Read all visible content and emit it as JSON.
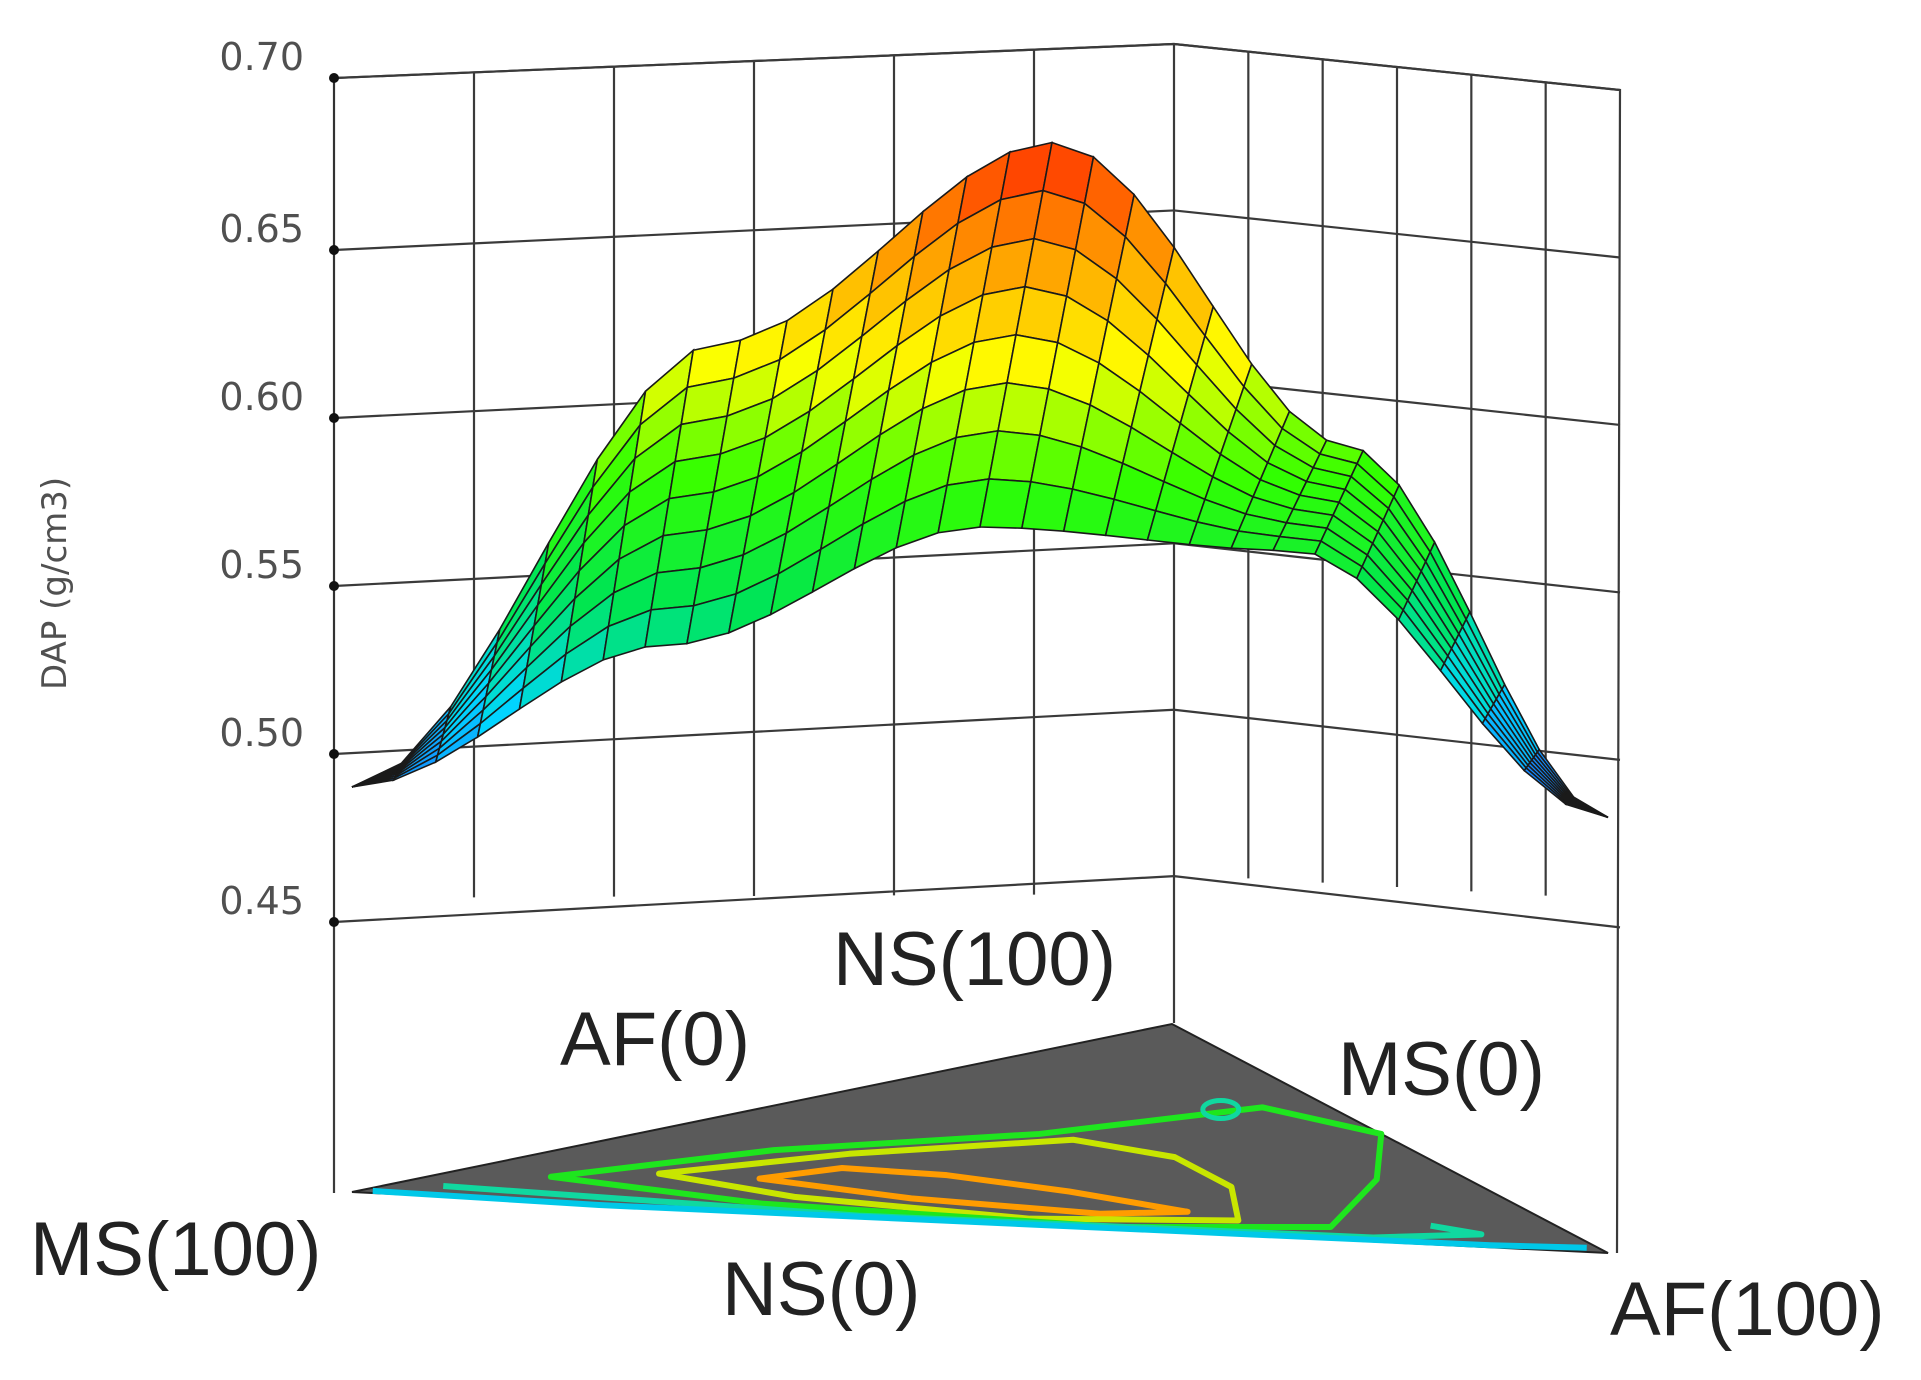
{
  "chart_data": {
    "type": "surface-3d-mixture",
    "title": "",
    "zlabel": "DAP  (g/cm3)",
    "zlim": [
      0.45,
      0.7
    ],
    "z_ticks": [
      "0.70",
      "0.65",
      "0.60",
      "0.55",
      "0.50",
      "0.45"
    ],
    "components": [
      "MS",
      "NS",
      "AF"
    ],
    "vertex_labels": {
      "ms_100": "MS(100)",
      "ns_0": "NS(0)",
      "af_100": "AF(100)",
      "af_0": "AF(0)",
      "ns_100": "NS(100)",
      "ms_0": "MS(0)"
    },
    "surface_edges": {
      "front_edge_NS_0": {
        "position": [
          0,
          0.25,
          0.5,
          0.75,
          1
        ],
        "dap": [
          0.49,
          0.532,
          0.567,
          0.56,
          0.481
        ]
      },
      "back_ridge": {
        "position": [
          0,
          0.25,
          0.5,
          0.75,
          1
        ],
        "dap": [
          0.49,
          0.615,
          0.672,
          0.585,
          0.481
        ]
      },
      "peak_dap": 0.672,
      "min_dap": 0.481
    },
    "contour_colors": [
      "#ff9c00",
      "#c8e600",
      "#1ee61e",
      "#10d8a0",
      "#00c8e8"
    ],
    "colormap": [
      "#1e64ff",
      "#00d8ff",
      "#00e650",
      "#32ff00",
      "#ffff00",
      "#ff9600",
      "#ff1e00"
    ],
    "base_color": "#5a5a5a",
    "grid": true
  }
}
